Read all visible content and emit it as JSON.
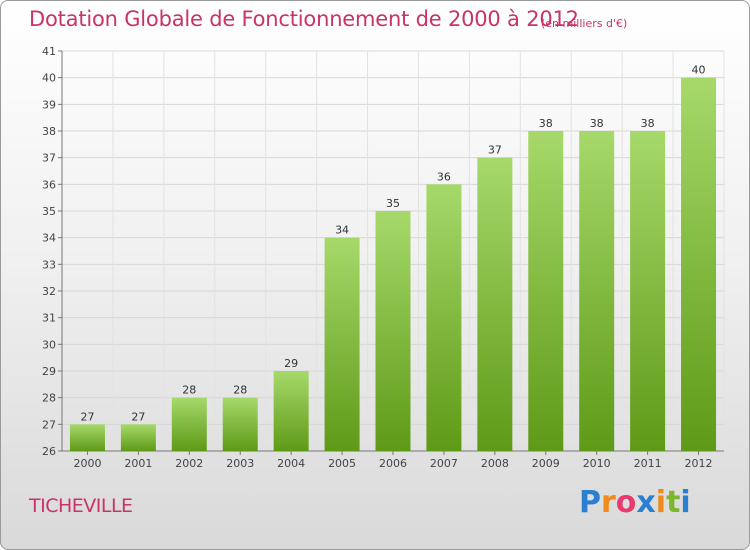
{
  "header": {
    "title": "Dotation Globale de Fonctionnement de 2000 à 2012",
    "unit_note": "(en milliers d'€)"
  },
  "footer": {
    "place": "TICHEVILLE",
    "logo": "Proxiti"
  },
  "colors": {
    "title": "#c8336a",
    "bar_top": "#a6d96a",
    "bar_bottom": "#5e9a17"
  },
  "chart_data": {
    "type": "bar",
    "categories": [
      "2000",
      "2001",
      "2002",
      "2003",
      "2004",
      "2005",
      "2006",
      "2007",
      "2008",
      "2009",
      "2010",
      "2011",
      "2012"
    ],
    "values": [
      27,
      27,
      28,
      28,
      29,
      34,
      35,
      36,
      37,
      38,
      38,
      38,
      40
    ],
    "ylim": [
      26,
      41
    ],
    "yticks": [
      26,
      27,
      28,
      29,
      30,
      31,
      32,
      33,
      34,
      35,
      36,
      37,
      38,
      39,
      40,
      41
    ],
    "grid": true,
    "data_labels": true
  }
}
